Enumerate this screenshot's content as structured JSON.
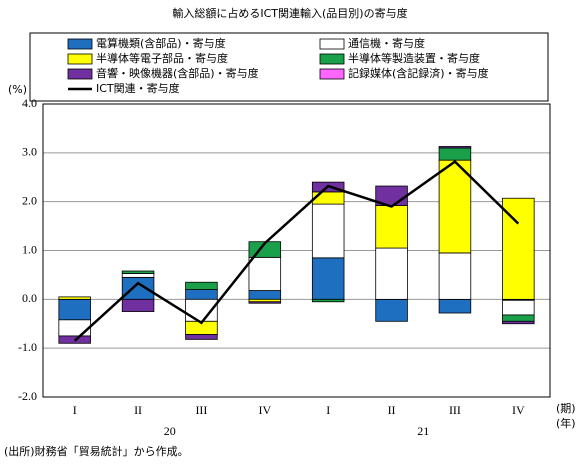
{
  "chart_data": {
    "type": "bar",
    "title": "輸入総額に占めるICT関連輸入(品目別)の寄与度",
    "y_label": "(%)",
    "x_label": "(期)",
    "x_label2": "(年)",
    "categories": [
      "I",
      "II",
      "III",
      "IV",
      "I",
      "II",
      "III",
      "IV"
    ],
    "year_labels": [
      "20",
      "21"
    ],
    "ylim": [
      -2.0,
      4.0
    ],
    "yticks": [
      {
        "value": -2,
        "label": "-2.0"
      },
      {
        "value": -1,
        "label": "-1.0"
      },
      {
        "value": 0,
        "label": "0.0"
      },
      {
        "value": 1,
        "label": "1.0"
      },
      {
        "value": 2,
        "label": "2.0"
      },
      {
        "value": 3,
        "label": "3.0"
      },
      {
        "value": 4,
        "label": "4.0"
      }
    ],
    "grid": true,
    "series": [
      {
        "name": "電算機類(含部品)・寄与度",
        "color": "#1f6fc0",
        "values": [
          -0.42,
          0.45,
          0.2,
          0.18,
          0.85,
          -0.45,
          -0.28,
          -0.02
        ]
      },
      {
        "name": "通信機・寄与度",
        "color": "#ffffff",
        "values": [
          -0.33,
          0.08,
          -0.45,
          0.68,
          1.1,
          1.05,
          0.95,
          -0.3
        ]
      },
      {
        "name": "半導体等電子部品・寄与度",
        "color": "#ffff00",
        "values": [
          0.05,
          0.0,
          -0.27,
          -0.05,
          0.25,
          0.87,
          1.9,
          2.07
        ]
      },
      {
        "name": "半導体等製造装置・寄与度",
        "color": "#1aa04a",
        "values": [
          0.0,
          0.05,
          0.15,
          0.32,
          -0.05,
          0.0,
          0.25,
          -0.13
        ]
      },
      {
        "name": "音響・映像機器(含部品)・寄与度",
        "color": "#7030a0",
        "values": [
          -0.15,
          -0.25,
          -0.1,
          -0.03,
          0.2,
          0.4,
          0.03,
          -0.05
        ]
      },
      {
        "name": "記録媒体(含記録済)・寄与度",
        "color": "#ff66ff",
        "values": [
          0.0,
          0.0,
          0.0,
          0.0,
          0.0,
          0.0,
          0.0,
          0.0
        ]
      },
      {
        "name": "ICT関連・寄与度",
        "color": "#000000",
        "type": "line",
        "values": [
          -0.85,
          0.33,
          -0.48,
          1.15,
          2.32,
          1.9,
          2.82,
          1.55
        ]
      }
    ],
    "note": "(出所)財務省「貿易統計」から作成。"
  }
}
